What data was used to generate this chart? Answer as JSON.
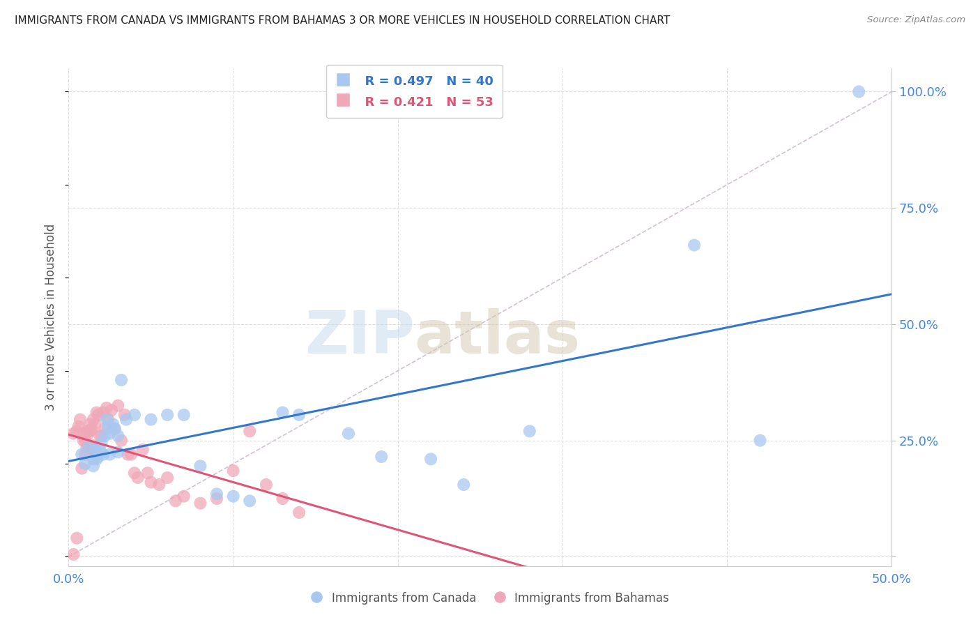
{
  "title": "IMMIGRANTS FROM CANADA VS IMMIGRANTS FROM BAHAMAS 3 OR MORE VEHICLES IN HOUSEHOLD CORRELATION CHART",
  "source": "Source: ZipAtlas.com",
  "ylabel": "3 or more Vehicles in Household",
  "xlim": [
    0.0,
    0.5
  ],
  "ylim": [
    -0.02,
    1.05
  ],
  "x_ticks": [
    0.0,
    0.1,
    0.2,
    0.3,
    0.4,
    0.5
  ],
  "x_tick_labels": [
    "0.0%",
    "",
    "",
    "",
    "",
    "50.0%"
  ],
  "y_ticks_right": [
    0.0,
    0.25,
    0.5,
    0.75,
    1.0
  ],
  "y_tick_labels_right": [
    "",
    "25.0%",
    "50.0%",
    "75.0%",
    "100.0%"
  ],
  "legend_canada_R": "0.497",
  "legend_canada_N": "40",
  "legend_bahamas_R": "0.421",
  "legend_bahamas_N": "53",
  "canada_color": "#a8c8f0",
  "bahamas_color": "#f0a8b8",
  "canada_line_color": "#3377cc",
  "bahamas_line_color": "#e05575",
  "diagonal_color": "#ccbbcc",
  "watermark_zip": "ZIP",
  "watermark_atlas": "atlas",
  "canada_scatter_x": [
    0.008,
    0.01,
    0.012,
    0.015,
    0.015,
    0.016,
    0.017,
    0.018,
    0.019,
    0.02,
    0.021,
    0.022,
    0.023,
    0.024,
    0.025,
    0.025,
    0.027,
    0.028,
    0.03,
    0.03,
    0.032,
    0.035,
    0.04,
    0.05,
    0.06,
    0.07,
    0.08,
    0.09,
    0.1,
    0.11,
    0.13,
    0.14,
    0.17,
    0.19,
    0.22,
    0.24,
    0.28,
    0.38,
    0.42,
    0.48
  ],
  "canada_scatter_y": [
    0.22,
    0.2,
    0.235,
    0.21,
    0.195,
    0.23,
    0.21,
    0.215,
    0.23,
    0.245,
    0.22,
    0.26,
    0.295,
    0.28,
    0.265,
    0.22,
    0.285,
    0.275,
    0.26,
    0.225,
    0.38,
    0.295,
    0.305,
    0.295,
    0.305,
    0.305,
    0.195,
    0.135,
    0.13,
    0.12,
    0.31,
    0.305,
    0.265,
    0.215,
    0.21,
    0.155,
    0.27,
    0.67,
    0.25,
    1.0
  ],
  "bahamas_scatter_x": [
    0.003,
    0.005,
    0.006,
    0.007,
    0.008,
    0.009,
    0.009,
    0.01,
    0.01,
    0.011,
    0.011,
    0.012,
    0.012,
    0.013,
    0.013,
    0.014,
    0.014,
    0.015,
    0.015,
    0.016,
    0.017,
    0.018,
    0.019,
    0.02,
    0.021,
    0.022,
    0.023,
    0.024,
    0.026,
    0.028,
    0.03,
    0.032,
    0.034,
    0.036,
    0.038,
    0.04,
    0.042,
    0.045,
    0.048,
    0.05,
    0.055,
    0.06,
    0.065,
    0.07,
    0.08,
    0.09,
    0.1,
    0.11,
    0.12,
    0.13,
    0.14,
    0.003,
    0.005
  ],
  "bahamas_scatter_y": [
    0.265,
    0.27,
    0.28,
    0.295,
    0.19,
    0.25,
    0.265,
    0.22,
    0.25,
    0.235,
    0.27,
    0.23,
    0.265,
    0.285,
    0.27,
    0.24,
    0.275,
    0.235,
    0.295,
    0.285,
    0.31,
    0.305,
    0.26,
    0.26,
    0.31,
    0.275,
    0.32,
    0.295,
    0.315,
    0.275,
    0.325,
    0.25,
    0.305,
    0.22,
    0.22,
    0.18,
    0.17,
    0.23,
    0.18,
    0.16,
    0.155,
    0.17,
    0.12,
    0.13,
    0.115,
    0.125,
    0.185,
    0.27,
    0.155,
    0.125,
    0.095,
    0.005,
    0.04
  ],
  "background_color": "#ffffff",
  "grid_color": "#dddddd",
  "title_color": "#222222",
  "axis_tick_color": "#4488dd"
}
